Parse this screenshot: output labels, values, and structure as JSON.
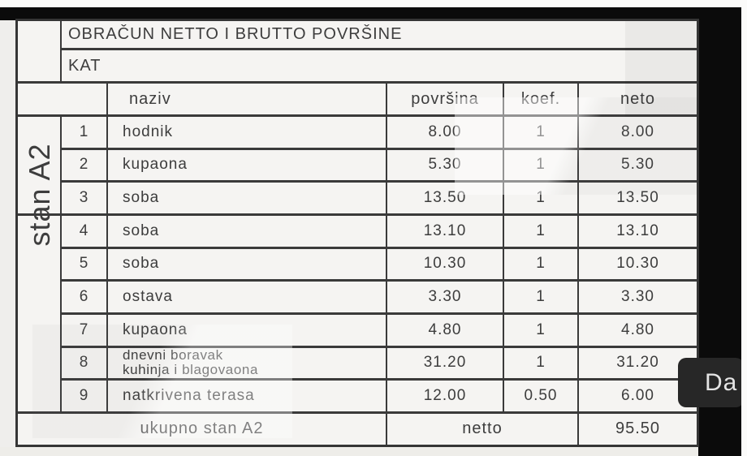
{
  "colors": {
    "page_bg": "#efeeec",
    "table_bg": "#f5f4f2",
    "line": "#3a3a3a",
    "text": "#3d3d3d",
    "black_bar": "#0b0b0b",
    "button_bg": "#272727",
    "button_text": "#e4e4e4"
  },
  "table": {
    "title": "OBRAČUN NETTO I BRUTTO POVRŠINE",
    "subtitle": "KAT",
    "row_group_label": "stan A2",
    "columns": {
      "name": "naziv",
      "area": "površina",
      "coef": "koef.",
      "net": "neto"
    },
    "rows": [
      {
        "num": "1",
        "name": "hodnik",
        "area": "8.00",
        "coef": "1",
        "net": "8.00"
      },
      {
        "num": "2",
        "name": "kupaona",
        "area": "5.30",
        "coef": "1",
        "net": "5.30"
      },
      {
        "num": "3",
        "name": "soba",
        "area": "13.50",
        "coef": "1",
        "net": "13.50"
      },
      {
        "num": "4",
        "name": "soba",
        "area": "13.10",
        "coef": "1",
        "net": "13.10"
      },
      {
        "num": "5",
        "name": "soba",
        "area": "10.30",
        "coef": "1",
        "net": "10.30"
      },
      {
        "num": "6",
        "name": "ostava",
        "area": "3.30",
        "coef": "1",
        "net": "3.30"
      },
      {
        "num": "7",
        "name": "kupaona",
        "area": "4.80",
        "coef": "1",
        "net": "4.80"
      },
      {
        "num": "8",
        "name": "dnevni boravak",
        "name2": "kuhinja i blagovaona",
        "area": "31.20",
        "coef": "1",
        "net": "31.20"
      },
      {
        "num": "9",
        "name": "natkrivena terasa",
        "area": "12.00",
        "coef": "0.50",
        "net": "6.00"
      }
    ],
    "footer": {
      "label": "ukupno stan A2",
      "mode": "netto",
      "total": "95.50"
    }
  },
  "overlay": {
    "button_label": "Da"
  }
}
